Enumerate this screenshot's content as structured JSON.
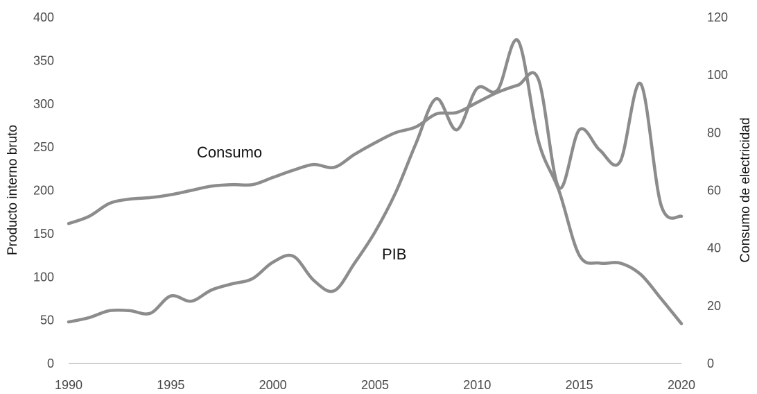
{
  "chart_data": {
    "type": "line",
    "title": "",
    "xlabel": "",
    "ylabel_left": "Producto interno bruto",
    "ylabel_right": "Consumo de electricidad",
    "xlim": [
      1990,
      2020
    ],
    "ylim_left": [
      0,
      400
    ],
    "ylim_right": [
      0,
      120
    ],
    "x_ticks": [
      "1990",
      "1995",
      "2000",
      "2005",
      "2010",
      "2015",
      "2020"
    ],
    "y_left_ticks": [
      "0",
      "50",
      "100",
      "150",
      "200",
      "250",
      "300",
      "350",
      "400"
    ],
    "y_right_ticks": [
      "0",
      "20",
      "40",
      "60",
      "80",
      "100",
      "120"
    ],
    "grid": false,
    "series": [
      {
        "name": "PIB",
        "axis": "left",
        "color": "#8c8c8c",
        "x": [
          1990,
          1991,
          1992,
          1993,
          1994,
          1995,
          1996,
          1997,
          1998,
          1999,
          2000,
          2001,
          2002,
          2003,
          2004,
          2005,
          2006,
          2007,
          2008,
          2009,
          2010,
          2011,
          2012,
          2013,
          2014,
          2015,
          2016,
          2017,
          2018,
          2019,
          2020
        ],
        "values": [
          48,
          53,
          61,
          61,
          58,
          78,
          72,
          85,
          92,
          98,
          117,
          124,
          96,
          84,
          116,
          152,
          197,
          254,
          306,
          270,
          318,
          316,
          373,
          257,
          200,
          125,
          116,
          116,
          103,
          75,
          46
        ]
      },
      {
        "name": "Consumo",
        "axis": "right",
        "color": "#8c8c8c",
        "x": [
          1990,
          1991,
          1992,
          1993,
          1994,
          1995,
          1996,
          1997,
          1998,
          1999,
          2000,
          2001,
          2002,
          2003,
          2004,
          2005,
          2006,
          2007,
          2008,
          2009,
          2010,
          2011,
          2012,
          2013,
          2014,
          2015,
          2016,
          2017,
          2018,
          2019,
          2020
        ],
        "values": [
          48.5,
          51,
          55.5,
          57,
          57.5,
          58.5,
          60,
          61.5,
          62,
          62,
          64.5,
          67,
          69,
          68,
          72.5,
          76.5,
          80,
          82,
          86.5,
          87,
          90.5,
          94,
          96.5,
          98.5,
          61,
          81,
          74,
          70,
          97,
          55,
          51
        ]
      }
    ],
    "annotations": [
      {
        "text": "Consumo",
        "series": "Consumo"
      },
      {
        "text": "PIB",
        "series": "PIB"
      }
    ]
  }
}
